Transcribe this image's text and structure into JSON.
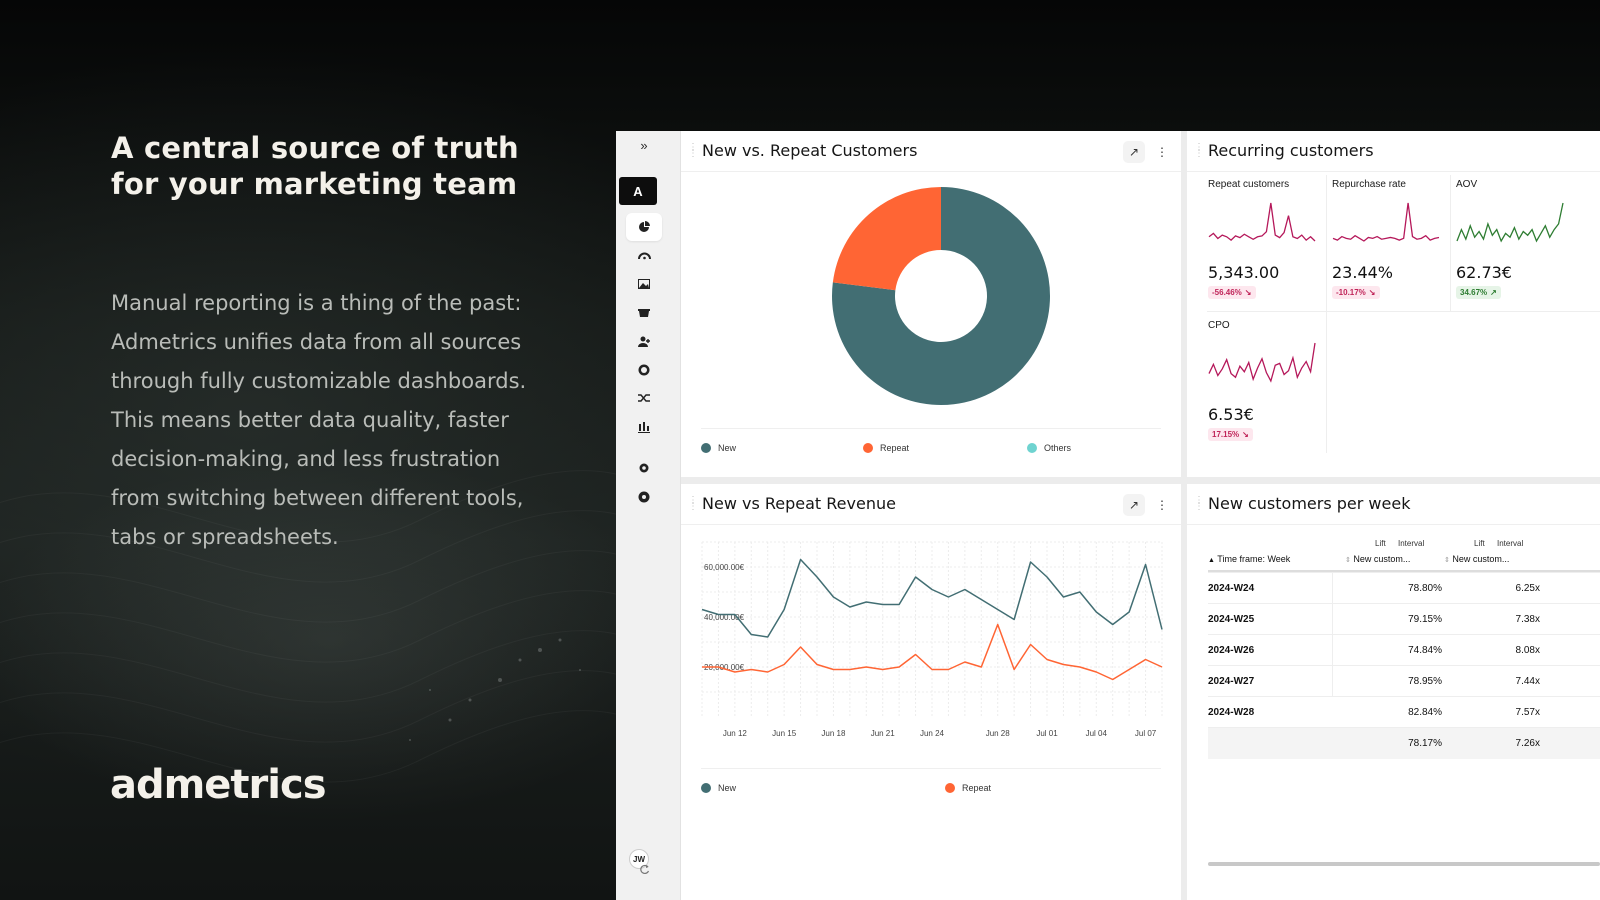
{
  "hero": {
    "title": "A central source of truth for your marketing team",
    "body": "Manual reporting is a thing of the past: Admetrics unifies data from all sources through fully customizable dashboards. This means better data quality, faster decision-making, and less frustration from switching between different tools, tabs or spreadsheets.",
    "brand": "admetrics"
  },
  "sidebar": {
    "logo": "A",
    "avatar": "JW",
    "icons": [
      "expand-icon",
      "pie-chart-icon",
      "dashboard-gauge-icon",
      "image-icon",
      "basket-icon",
      "user-add-icon",
      "coin-icon",
      "shuffle-icon",
      "bar-chart-icon",
      "settings-icon",
      "help-icon",
      "refresh-icon"
    ]
  },
  "panels": {
    "new_vs_repeat_customers": {
      "title": "New vs. Repeat Customers",
      "legend": [
        {
          "label": "New",
          "color": "#426e73"
        },
        {
          "label": "Repeat",
          "color": "#ff6534"
        },
        {
          "label": "Others",
          "color": "#6fd3d0"
        }
      ]
    },
    "recurring_customers": {
      "title": "Recurring customers",
      "metrics": [
        {
          "label": "Repeat customers",
          "value": "5,343.00",
          "change": "-56.46%",
          "trend": "down"
        },
        {
          "label": "Repurchase rate",
          "value": "23.44%",
          "change": "-10.17%",
          "trend": "down"
        },
        {
          "label": "AOV",
          "value": "62.73€",
          "change": "34.67%",
          "trend": "up"
        },
        {
          "label": "CPO",
          "value": "6.53€",
          "change": "17.15%",
          "trend": "down"
        }
      ]
    },
    "new_vs_repeat_revenue": {
      "title": "New vs Repeat Revenue",
      "legend": [
        {
          "label": "New",
          "color": "#426e73"
        },
        {
          "label": "Repeat",
          "color": "#ff6534"
        }
      ]
    },
    "new_customers_per_week": {
      "title": "New customers per week",
      "header_top": [
        "Lift",
        "Interval",
        "Lift",
        "Interval"
      ],
      "columns": [
        "Time frame: Week",
        "New custom...",
        "New custom..."
      ],
      "rows": [
        [
          "2024-W24",
          "78.80%",
          "6.25x"
        ],
        [
          "2024-W25",
          "79.15%",
          "7.38x"
        ],
        [
          "2024-W26",
          "74.84%",
          "8.08x"
        ],
        [
          "2024-W27",
          "78.95%",
          "7.44x"
        ],
        [
          "2024-W28",
          "82.84%",
          "7.57x"
        ]
      ],
      "summary": [
        "",
        "78.17%",
        "7.26x"
      ]
    }
  },
  "chart_data": [
    {
      "type": "pie",
      "title": "New vs. Repeat Customers",
      "slices": [
        {
          "label": "New",
          "value": 77
        },
        {
          "label": "Repeat",
          "value": 23
        },
        {
          "label": "Others",
          "value": 0
        }
      ],
      "donut": true,
      "legend": "bottom"
    },
    {
      "type": "line",
      "title": "New vs Repeat Revenue",
      "x": [
        "Jun 10",
        "Jun 11",
        "Jun 12",
        "Jun 13",
        "Jun 14",
        "Jun 15",
        "Jun 16",
        "Jun 17",
        "Jun 18",
        "Jun 19",
        "Jun 20",
        "Jun 21",
        "Jun 22",
        "Jun 23",
        "Jun 24",
        "Jun 25",
        "Jun 26",
        "Jun 27",
        "Jun 28",
        "Jun 29",
        "Jun 30",
        "Jul 01",
        "Jul 02",
        "Jul 03",
        "Jul 04",
        "Jul 05",
        "Jul 06",
        "Jul 07",
        "Jul 08"
      ],
      "x_ticks": [
        "Jun 12",
        "Jun 15",
        "Jun 18",
        "Jun 21",
        "Jun 24",
        "Jun 28",
        "Jul 01",
        "Jul 04",
        "Jul 07"
      ],
      "y_ticks": [
        "20,000.00€",
        "40,000.00€",
        "60,000.00€"
      ],
      "ylim": [
        0,
        70000
      ],
      "grid": true,
      "legend": "bottom",
      "series": [
        {
          "name": "New",
          "values": [
            43000,
            41000,
            41000,
            33000,
            32000,
            43000,
            63000,
            56000,
            48000,
            44000,
            46000,
            45000,
            45000,
            56000,
            51000,
            48000,
            51000,
            47000,
            43000,
            39000,
            62000,
            56000,
            48000,
            50000,
            42000,
            37000,
            42000,
            61000,
            35000
          ]
        },
        {
          "name": "Repeat",
          "values": [
            20000,
            20000,
            18000,
            19000,
            18000,
            21000,
            28000,
            21000,
            19000,
            19000,
            20000,
            19000,
            20000,
            25000,
            19000,
            19000,
            22000,
            20000,
            37000,
            19000,
            29000,
            23000,
            21000,
            20000,
            18000,
            15000,
            19000,
            23000,
            20000
          ]
        }
      ]
    },
    {
      "type": "line",
      "title": "Repeat customers",
      "series": [
        {
          "name": "Repeat customers",
          "values": [
            5,
            5.4,
            4.8,
            5.2,
            5,
            4.6,
            5.1,
            4.9,
            5.3,
            5,
            4.7,
            5,
            5.1,
            5.6,
            9,
            5.2,
            4.9,
            5.5,
            7.5,
            5,
            4.8,
            5.2,
            4.6,
            5,
            4.5
          ]
        }
      ]
    },
    {
      "type": "line",
      "title": "Repurchase rate",
      "series": [
        {
          "name": "Repurchase rate",
          "values": [
            5,
            4.8,
            5.2,
            5,
            4.9,
            5.3,
            5,
            4.7,
            5.1,
            5,
            5.2,
            4.9,
            5,
            5.1,
            5,
            4.8,
            5,
            9,
            5.2,
            4.9,
            5,
            5.3,
            4.8,
            5,
            5.1
          ]
        }
      ]
    },
    {
      "type": "line",
      "title": "AOV",
      "series": [
        {
          "name": "AOV",
          "values": [
            5,
            5.6,
            5.1,
            5.8,
            5.2,
            5.5,
            5.1,
            5.9,
            5.3,
            5.6,
            5,
            5.4,
            5.2,
            5.7,
            5.1,
            5.5,
            5.3,
            5.6,
            5,
            5.4,
            5.8,
            5.2,
            5.6,
            5.9,
            7
          ]
        }
      ]
    },
    {
      "type": "line",
      "title": "CPO",
      "series": [
        {
          "name": "CPO",
          "values": [
            5,
            6,
            4.8,
            5.5,
            6.5,
            5,
            4.6,
            5.8,
            5.2,
            6.2,
            4.4,
            5.6,
            6.6,
            5.1,
            4.2,
            5.9,
            6.1,
            4.9,
            5.3,
            6.7,
            4.6,
            5.6,
            6.3,
            5.2,
            8.3
          ]
        }
      ]
    }
  ]
}
